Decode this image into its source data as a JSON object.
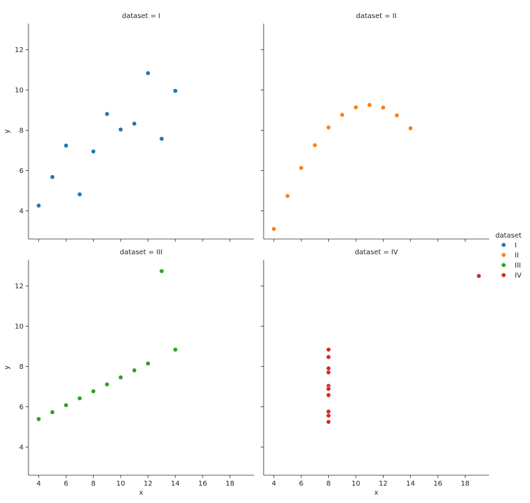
{
  "chart_data": {
    "type": "scatter",
    "xlabel": "x",
    "ylabel": "y",
    "xlim": [
      3.25,
      19.75
    ],
    "ylim": [
      2.6,
      13.3
    ],
    "xticks": [
      4,
      6,
      8,
      10,
      12,
      14,
      16,
      18
    ],
    "yticks": [
      4,
      6,
      8,
      10,
      12
    ],
    "legend": {
      "title": "dataset",
      "placement": "center-right",
      "entries": [
        {
          "label": "I",
          "color": "#1f77b4"
        },
        {
          "label": "II",
          "color": "#ff7f0e"
        },
        {
          "label": "III",
          "color": "#2ca02c"
        },
        {
          "label": "IV",
          "color": "#d62728"
        }
      ]
    },
    "panels": [
      {
        "title": "dataset = I",
        "color": "#1f77b4",
        "points": [
          [
            10,
            8.04
          ],
          [
            8,
            6.95
          ],
          [
            13,
            7.58
          ],
          [
            9,
            8.81
          ],
          [
            11,
            8.33
          ],
          [
            14,
            9.96
          ],
          [
            6,
            7.24
          ],
          [
            4,
            4.26
          ],
          [
            12,
            10.84
          ],
          [
            7,
            4.82
          ],
          [
            5,
            5.68
          ]
        ]
      },
      {
        "title": "dataset = II",
        "color": "#ff7f0e",
        "points": [
          [
            10,
            9.14
          ],
          [
            8,
            8.14
          ],
          [
            13,
            8.74
          ],
          [
            9,
            8.77
          ],
          [
            11,
            9.26
          ],
          [
            14,
            8.1
          ],
          [
            6,
            6.13
          ],
          [
            4,
            3.1
          ],
          [
            12,
            9.13
          ],
          [
            7,
            7.26
          ],
          [
            5,
            4.74
          ]
        ]
      },
      {
        "title": "dataset = III",
        "color": "#2ca02c",
        "points": [
          [
            10,
            7.46
          ],
          [
            8,
            6.77
          ],
          [
            13,
            12.74
          ],
          [
            9,
            7.11
          ],
          [
            11,
            7.81
          ],
          [
            14,
            8.84
          ],
          [
            6,
            6.08
          ],
          [
            4,
            5.39
          ],
          [
            12,
            8.15
          ],
          [
            7,
            6.42
          ],
          [
            5,
            5.73
          ]
        ]
      },
      {
        "title": "dataset = IV",
        "color": "#d62728",
        "points": [
          [
            8,
            6.58
          ],
          [
            8,
            5.76
          ],
          [
            8,
            7.71
          ],
          [
            8,
            8.84
          ],
          [
            8,
            8.47
          ],
          [
            8,
            7.04
          ],
          [
            8,
            5.25
          ],
          [
            19,
            12.5
          ],
          [
            8,
            5.56
          ],
          [
            8,
            7.91
          ],
          [
            8,
            6.89
          ]
        ]
      }
    ]
  }
}
